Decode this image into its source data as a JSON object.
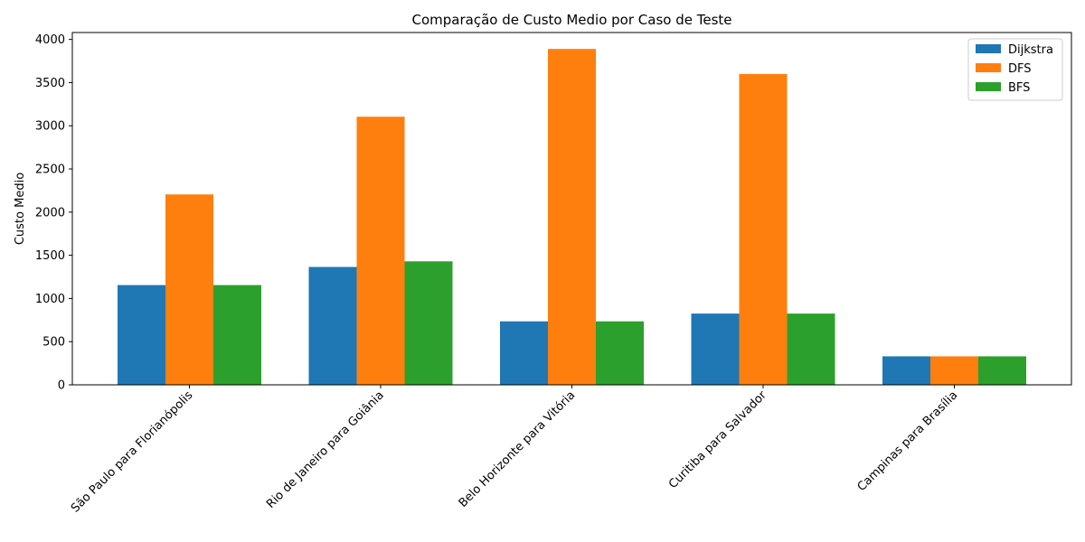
{
  "chart_data": {
    "type": "bar",
    "title": "Comparação de Custo Medio por Caso de Teste",
    "xlabel": "",
    "ylabel": "Custo Medio",
    "ylim": [
      0,
      4080
    ],
    "yticks": [
      0,
      500,
      1000,
      1500,
      2000,
      2500,
      3000,
      3500,
      4000
    ],
    "categories": [
      "São Paulo para Florianópolis",
      "Rio de Janeiro para Goiânia",
      "Belo Horizonte para Vitória",
      "Curitiba para Salvador",
      "Campinas para Brasília"
    ],
    "series": [
      {
        "name": "Dijkstra",
        "color": "#1f77b4",
        "values": [
          1155,
          1365,
          735,
          825,
          330
        ]
      },
      {
        "name": "DFS",
        "color": "#ff7f0e",
        "values": [
          2205,
          3105,
          3890,
          3600,
          330
        ]
      },
      {
        "name": "BFS",
        "color": "#2ca02c",
        "values": [
          1155,
          1430,
          735,
          825,
          330
        ]
      }
    ],
    "legend_position": "top-right",
    "grid": false
  }
}
